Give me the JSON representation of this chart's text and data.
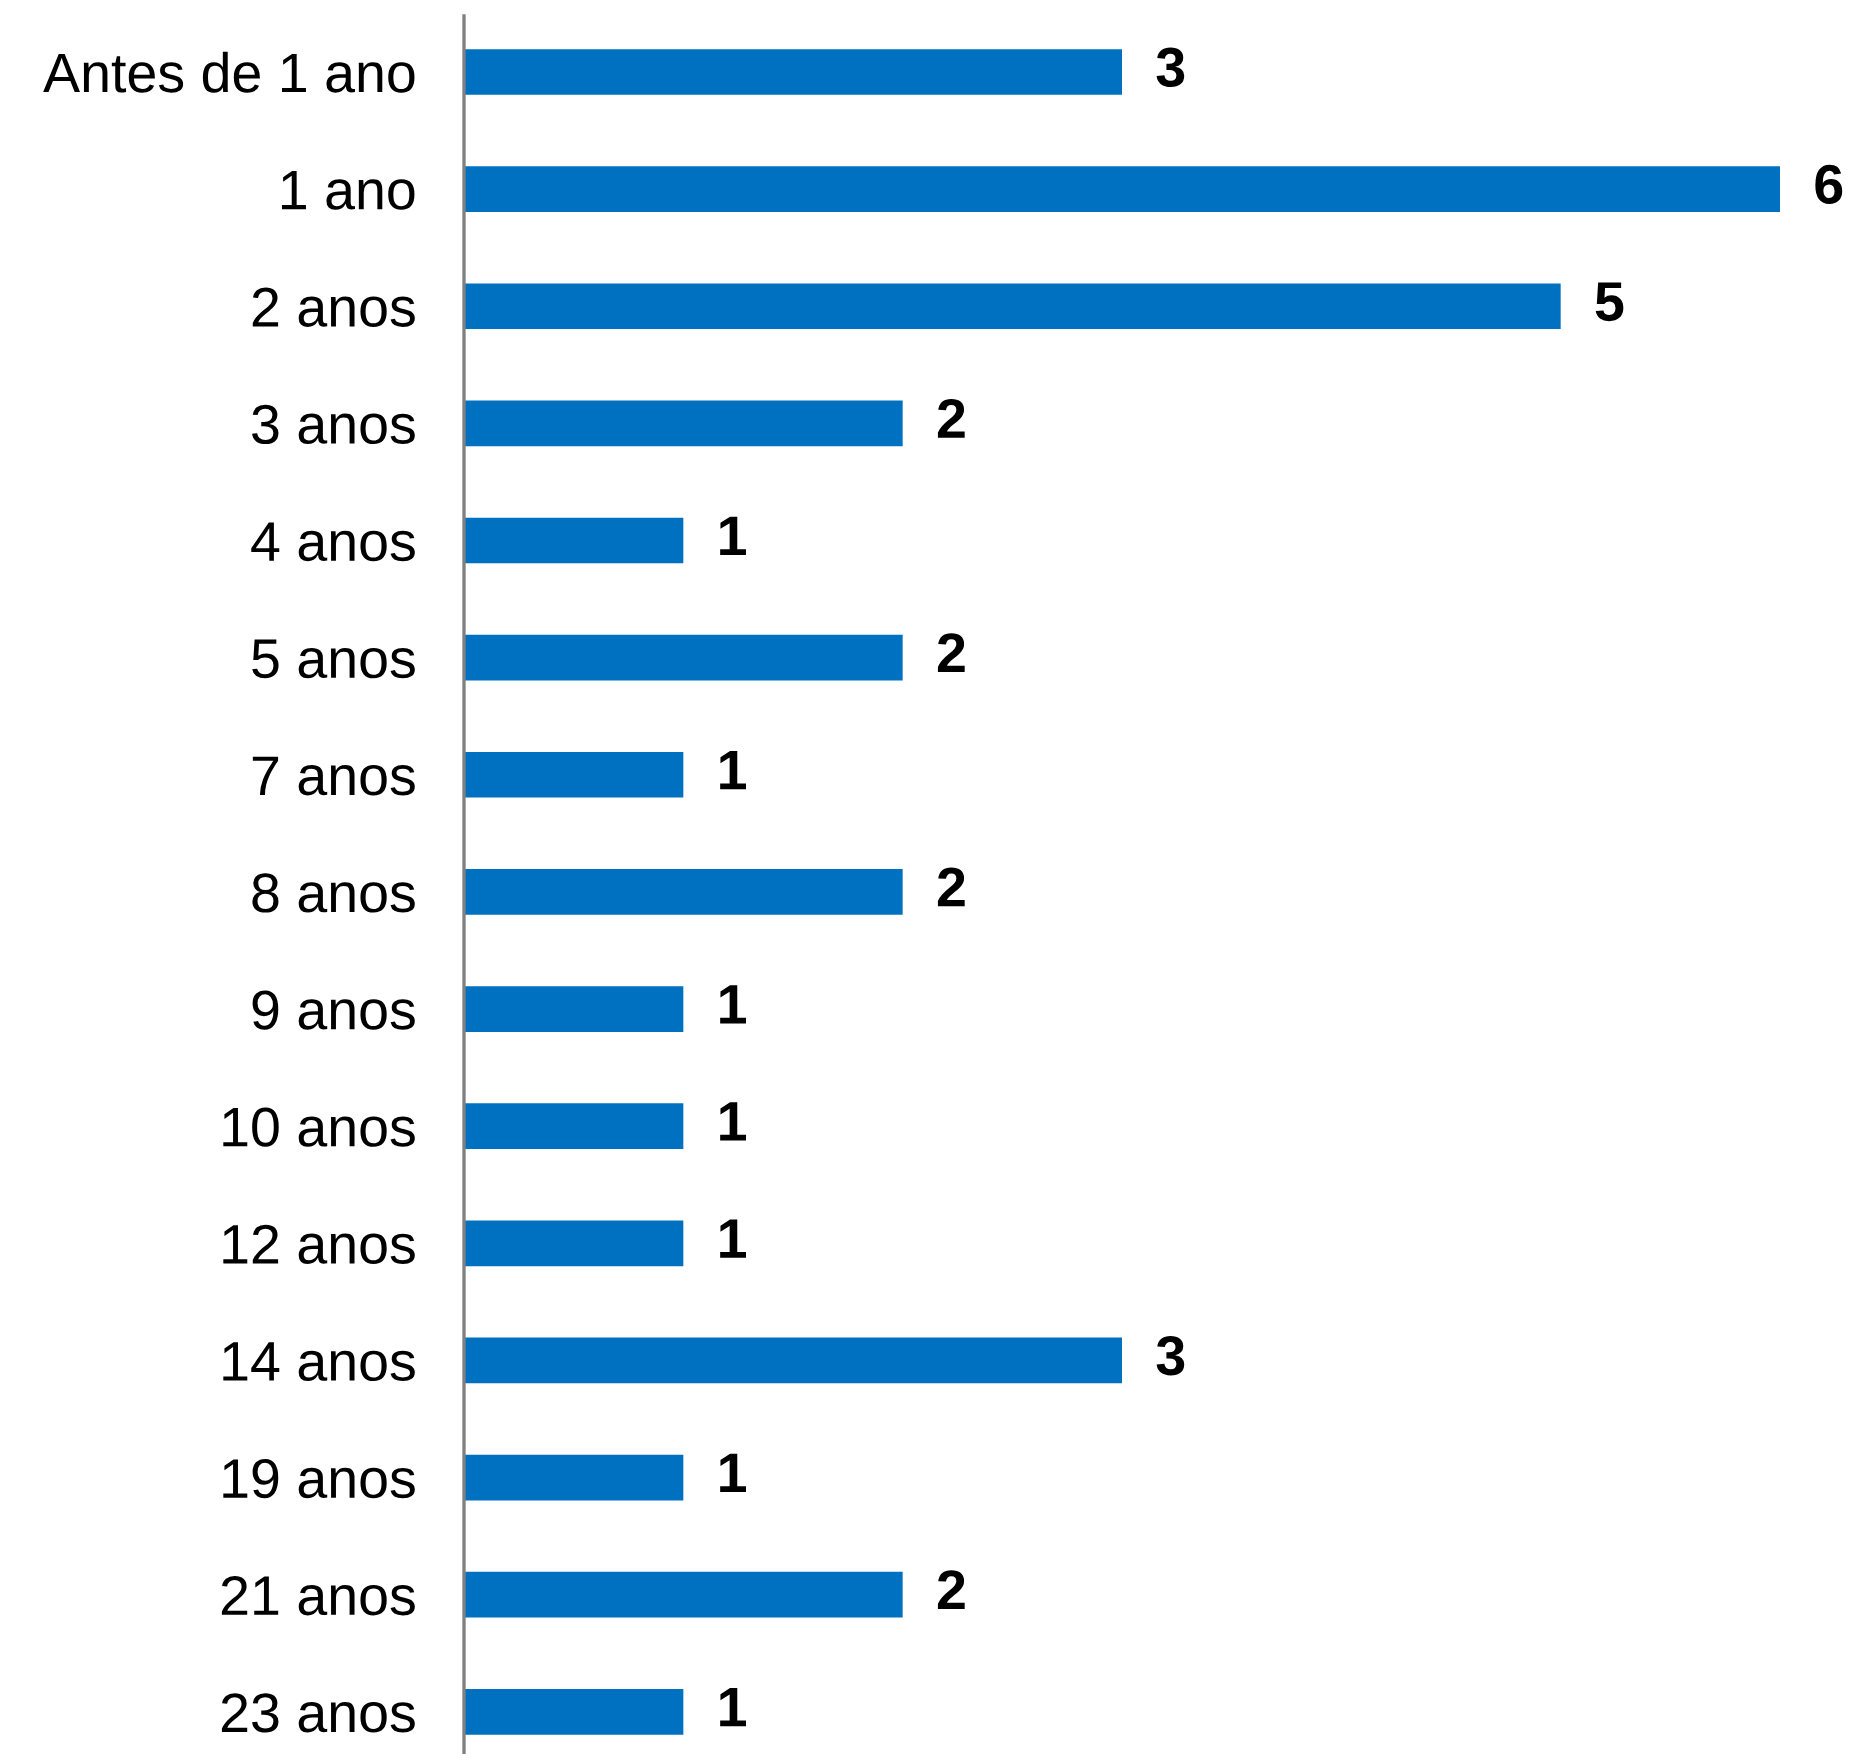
{
  "chart_data": {
    "type": "bar",
    "orientation": "horizontal",
    "categories": [
      "Antes de 1 ano",
      "1 ano",
      "2 anos",
      "3 anos",
      "4 anos",
      "5 anos",
      "7 anos",
      "8 anos",
      "9 anos",
      "10 anos",
      "12 anos",
      "14 anos",
      "19 anos",
      "21 anos",
      "23 anos"
    ],
    "values": [
      3,
      6,
      5,
      2,
      1,
      2,
      1,
      2,
      1,
      1,
      1,
      3,
      1,
      2,
      1
    ],
    "color": "#0070c0",
    "data_labels": true,
    "grid": false,
    "legend": false
  }
}
